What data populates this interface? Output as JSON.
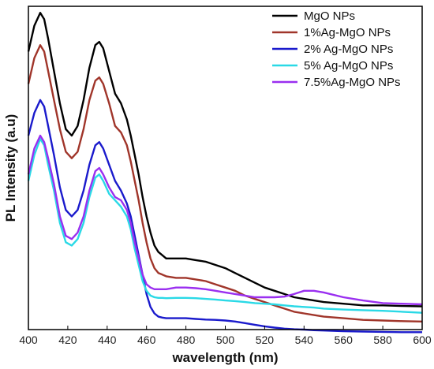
{
  "chart_data": {
    "type": "line",
    "xlabel": "wavelength (nm)",
    "ylabel": "PL Intensity (a.u)",
    "xlim": [
      400,
      600
    ],
    "ylim": [
      0,
      100
    ],
    "xticks": [
      400,
      420,
      440,
      460,
      480,
      500,
      520,
      540,
      560,
      580,
      600
    ],
    "yticks_shown": false,
    "grid": false,
    "legend_position": "top-right",
    "series": [
      {
        "name": "MgO NPs",
        "color": "#000000",
        "x": [
          400,
          403,
          406,
          408,
          410,
          413,
          416,
          419,
          422,
          425,
          428,
          431,
          434,
          436,
          438,
          441,
          444,
          447,
          450,
          452,
          454,
          456,
          458,
          460,
          462,
          464,
          466,
          468,
          470,
          475,
          480,
          485,
          490,
          495,
          500,
          505,
          510,
          515,
          520,
          525,
          530,
          535,
          540,
          545,
          550,
          560,
          570,
          580,
          590,
          600
        ],
        "y": [
          86,
          94,
          98,
          96,
          90,
          80,
          70,
          62,
          60,
          63,
          71,
          81,
          88,
          89,
          87,
          80,
          73,
          70,
          65,
          60,
          54,
          48,
          41,
          35,
          30,
          26,
          24,
          23,
          22,
          22,
          22,
          21.5,
          21,
          20,
          19,
          17.5,
          16,
          14.5,
          13,
          12,
          11,
          10,
          9.5,
          9,
          8.5,
          8,
          7.5,
          7.5,
          7.3,
          7.2
        ]
      },
      {
        "name": "1%Ag-MgO NPs",
        "color": "#a0352a",
        "x": [
          400,
          403,
          406,
          408,
          410,
          413,
          416,
          419,
          422,
          425,
          428,
          431,
          434,
          436,
          438,
          441,
          444,
          447,
          450,
          452,
          454,
          456,
          458,
          460,
          462,
          464,
          466,
          468,
          470,
          475,
          480,
          485,
          490,
          495,
          500,
          505,
          510,
          515,
          520,
          525,
          530,
          535,
          540,
          545,
          550,
          560,
          570,
          580,
          590,
          600
        ],
        "y": [
          76,
          84,
          88,
          86,
          80,
          71,
          62,
          55,
          53,
          55,
          62,
          71,
          77,
          78,
          76,
          70,
          63,
          61,
          57,
          52,
          46,
          40,
          33,
          27,
          22,
          19,
          17.5,
          17,
          16.5,
          16,
          16,
          15.5,
          15,
          14,
          13,
          12,
          10.5,
          9.5,
          8.5,
          7.5,
          6.5,
          5.5,
          5,
          4.5,
          4,
          3.5,
          3,
          2.8,
          2.6,
          2.5
        ]
      },
      {
        "name": "2% Ag-MgO NPs",
        "color": "#1a1acc",
        "x": [
          400,
          403,
          406,
          408,
          410,
          413,
          416,
          419,
          422,
          425,
          428,
          431,
          434,
          436,
          438,
          441,
          444,
          447,
          450,
          452,
          454,
          456,
          458,
          460,
          462,
          464,
          466,
          468,
          470,
          475,
          480,
          485,
          490,
          495,
          500,
          505,
          510,
          515,
          520,
          525,
          530,
          535,
          540,
          545,
          550,
          560,
          570,
          580,
          590,
          600
        ],
        "y": [
          60,
          67,
          71,
          69,
          63,
          54,
          44,
          37,
          35,
          37,
          43,
          51,
          57,
          58,
          56,
          51,
          46,
          43,
          39,
          35,
          29,
          23,
          17,
          11,
          7,
          5,
          4,
          3.7,
          3.5,
          3.5,
          3.5,
          3.3,
          3.1,
          3,
          2.8,
          2.5,
          2,
          1.5,
          1,
          0.6,
          0.3,
          0.1,
          0,
          -0.2,
          -0.3,
          -0.5,
          -0.6,
          -0.7,
          -0.8,
          -0.8
        ]
      },
      {
        "name": "5% Ag-MgO NPs",
        "color": "#2ad9e6",
        "x": [
          400,
          403,
          406,
          408,
          410,
          413,
          416,
          419,
          422,
          425,
          428,
          431,
          434,
          436,
          438,
          441,
          444,
          447,
          450,
          452,
          454,
          456,
          458,
          460,
          462,
          464,
          466,
          468,
          470,
          475,
          480,
          485,
          490,
          495,
          500,
          505,
          510,
          515,
          520,
          525,
          530,
          535,
          540,
          545,
          550,
          560,
          570,
          580,
          590,
          600
        ],
        "y": [
          46,
          54,
          59,
          57,
          51,
          43,
          33,
          27,
          26,
          28,
          33,
          41,
          47,
          48,
          46,
          42,
          40,
          38,
          35,
          31,
          25,
          20,
          15,
          12,
          10.5,
          10,
          9.8,
          9.8,
          9.7,
          9.8,
          9.8,
          9.7,
          9.5,
          9.3,
          9,
          8.8,
          8.5,
          8.2,
          8,
          7.8,
          7.5,
          7.2,
          7,
          6.8,
          6.5,
          6.2,
          6,
          5.8,
          5.5,
          5.2
        ]
      },
      {
        "name": "7.5%Ag-MgO NPs",
        "color": "#9a2ff0",
        "x": [
          400,
          403,
          406,
          408,
          410,
          413,
          416,
          419,
          422,
          425,
          428,
          431,
          434,
          436,
          438,
          441,
          444,
          447,
          450,
          452,
          454,
          456,
          458,
          460,
          462,
          464,
          466,
          468,
          470,
          475,
          480,
          485,
          490,
          495,
          500,
          505,
          510,
          515,
          520,
          525,
          530,
          535,
          540,
          545,
          550,
          560,
          570,
          580,
          590,
          600
        ],
        "y": [
          48,
          56,
          60,
          58,
          53,
          45,
          35,
          29,
          28,
          30,
          35,
          43,
          49,
          50,
          48,
          44,
          41,
          40,
          37,
          33,
          27,
          22,
          17,
          14,
          13,
          12.5,
          12.5,
          12.5,
          12.5,
          13,
          13,
          12.8,
          12.5,
          12,
          11.5,
          11,
          10.5,
          10,
          10,
          10,
          10.2,
          11,
          12,
          12,
          11.5,
          10,
          9,
          8.2,
          8,
          7.8
        ]
      }
    ]
  }
}
